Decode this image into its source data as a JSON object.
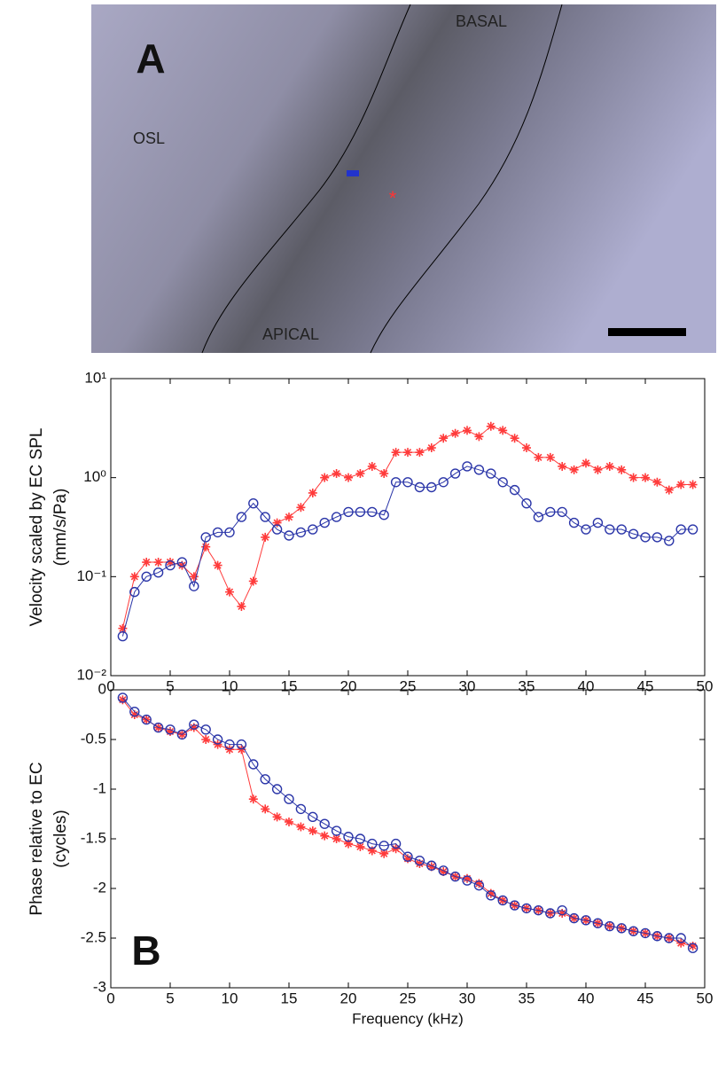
{
  "panel_a": {
    "label": "A",
    "region_labels": [
      "OSL",
      "BASAL",
      "APICAL"
    ]
  },
  "chart_data": [
    {
      "type": "scatter-line",
      "yscale": "log",
      "y_label": [
        "Velocity scaled by EC SPL",
        "(mm/s/Pa)"
      ],
      "xlim": [
        0,
        50
      ],
      "xticks": [
        0,
        5,
        10,
        15,
        20,
        25,
        30,
        35,
        40,
        45,
        50
      ],
      "ylim": [
        0.01,
        10
      ],
      "yticks": [
        {
          "value": 0.01,
          "label": "10⁻²"
        },
        {
          "value": 0.1,
          "label": "10⁻¹"
        },
        {
          "value": 1,
          "label": "10⁰"
        },
        {
          "value": 10,
          "label": "10¹"
        }
      ],
      "series": [
        {
          "marker": "star",
          "color": "#ff3b3b",
          "x": [
            1,
            2,
            3,
            4,
            5,
            6,
            7,
            8,
            9,
            10,
            11,
            12,
            13,
            14,
            15,
            16,
            17,
            18,
            19,
            20,
            21,
            22,
            23,
            24,
            25,
            26,
            27,
            28,
            29,
            30,
            31,
            32,
            33,
            34,
            35,
            36,
            37,
            38,
            39,
            40,
            41,
            42,
            43,
            44,
            45,
            46,
            47,
            48,
            49
          ],
          "values": [
            0.03,
            0.1,
            0.14,
            0.14,
            0.14,
            0.13,
            0.1,
            0.2,
            0.13,
            0.07,
            0.05,
            0.09,
            0.25,
            0.35,
            0.4,
            0.5,
            0.7,
            1.0,
            1.1,
            1.0,
            1.1,
            1.3,
            1.1,
            1.8,
            1.8,
            1.8,
            2.0,
            2.5,
            2.8,
            3.0,
            2.6,
            3.3,
            3.0,
            2.5,
            2.0,
            1.6,
            1.6,
            1.3,
            1.2,
            1.4,
            1.2,
            1.3,
            1.2,
            1.0,
            1.0,
            0.9,
            0.75,
            0.85,
            0.85
          ]
        },
        {
          "marker": "circle",
          "color": "#2a35a8",
          "x": [
            1,
            2,
            3,
            4,
            5,
            6,
            7,
            8,
            9,
            10,
            11,
            12,
            13,
            14,
            15,
            16,
            17,
            18,
            19,
            20,
            21,
            22,
            23,
            24,
            25,
            26,
            27,
            28,
            29,
            30,
            31,
            32,
            33,
            34,
            35,
            36,
            37,
            38,
            39,
            40,
            41,
            42,
            43,
            44,
            45,
            46,
            47,
            48,
            49
          ],
          "values": [
            0.025,
            0.07,
            0.1,
            0.11,
            0.13,
            0.14,
            0.08,
            0.25,
            0.28,
            0.28,
            0.4,
            0.55,
            0.4,
            0.3,
            0.26,
            0.28,
            0.3,
            0.35,
            0.4,
            0.45,
            0.45,
            0.45,
            0.42,
            0.9,
            0.9,
            0.8,
            0.8,
            0.9,
            1.1,
            1.3,
            1.2,
            1.1,
            0.9,
            0.75,
            0.55,
            0.4,
            0.45,
            0.45,
            0.35,
            0.3,
            0.35,
            0.3,
            0.3,
            0.27,
            0.25,
            0.25,
            0.23,
            0.3,
            0.3
          ]
        }
      ]
    },
    {
      "type": "scatter-line",
      "yscale": "linear",
      "panel_label": "B",
      "y_label": [
        "Phase relative to EC",
        "(cycles)"
      ],
      "x_label": "Frequency (kHz)",
      "xlim": [
        0,
        50
      ],
      "xticks": [
        0,
        5,
        10,
        15,
        20,
        25,
        30,
        35,
        40,
        45,
        50
      ],
      "ylim": [
        -3,
        0
      ],
      "yticks": [
        -3,
        -2.5,
        -2,
        -1.5,
        -1,
        -0.5,
        0
      ],
      "series": [
        {
          "marker": "star",
          "color": "#ff3b3b",
          "x": [
            1,
            2,
            3,
            4,
            5,
            6,
            7,
            8,
            9,
            10,
            11,
            12,
            13,
            14,
            15,
            16,
            17,
            18,
            19,
            20,
            21,
            22,
            23,
            24,
            25,
            26,
            27,
            28,
            29,
            30,
            31,
            32,
            33,
            34,
            35,
            36,
            37,
            38,
            39,
            40,
            41,
            42,
            43,
            44,
            45,
            46,
            47,
            48,
            49
          ],
          "values": [
            -0.1,
            -0.25,
            -0.3,
            -0.38,
            -0.42,
            -0.45,
            -0.38,
            -0.5,
            -0.55,
            -0.6,
            -0.6,
            -1.1,
            -1.2,
            -1.28,
            -1.33,
            -1.38,
            -1.42,
            -1.47,
            -1.5,
            -1.55,
            -1.58,
            -1.62,
            -1.65,
            -1.6,
            -1.7,
            -1.75,
            -1.78,
            -1.83,
            -1.88,
            -1.9,
            -1.95,
            -2.05,
            -2.12,
            -2.17,
            -2.2,
            -2.22,
            -2.25,
            -2.25,
            -2.3,
            -2.32,
            -2.35,
            -2.38,
            -2.4,
            -2.43,
            -2.45,
            -2.48,
            -2.5,
            -2.55,
            -2.58
          ]
        },
        {
          "marker": "circle",
          "color": "#2a35a8",
          "x": [
            1,
            2,
            3,
            4,
            5,
            6,
            7,
            8,
            9,
            10,
            11,
            12,
            13,
            14,
            15,
            16,
            17,
            18,
            19,
            20,
            21,
            22,
            23,
            24,
            25,
            26,
            27,
            28,
            29,
            30,
            31,
            32,
            33,
            34,
            35,
            36,
            37,
            38,
            39,
            40,
            41,
            42,
            43,
            44,
            45,
            46,
            47,
            48,
            49
          ],
          "values": [
            -0.08,
            -0.22,
            -0.3,
            -0.38,
            -0.4,
            -0.45,
            -0.35,
            -0.4,
            -0.5,
            -0.55,
            -0.55,
            -0.75,
            -0.9,
            -1.0,
            -1.1,
            -1.2,
            -1.28,
            -1.35,
            -1.42,
            -1.48,
            -1.5,
            -1.55,
            -1.57,
            -1.55,
            -1.68,
            -1.72,
            -1.77,
            -1.82,
            -1.88,
            -1.92,
            -1.97,
            -2.07,
            -2.12,
            -2.17,
            -2.2,
            -2.22,
            -2.25,
            -2.22,
            -2.3,
            -2.32,
            -2.35,
            -2.38,
            -2.4,
            -2.43,
            -2.45,
            -2.48,
            -2.5,
            -2.5,
            -2.6
          ]
        }
      ]
    }
  ]
}
